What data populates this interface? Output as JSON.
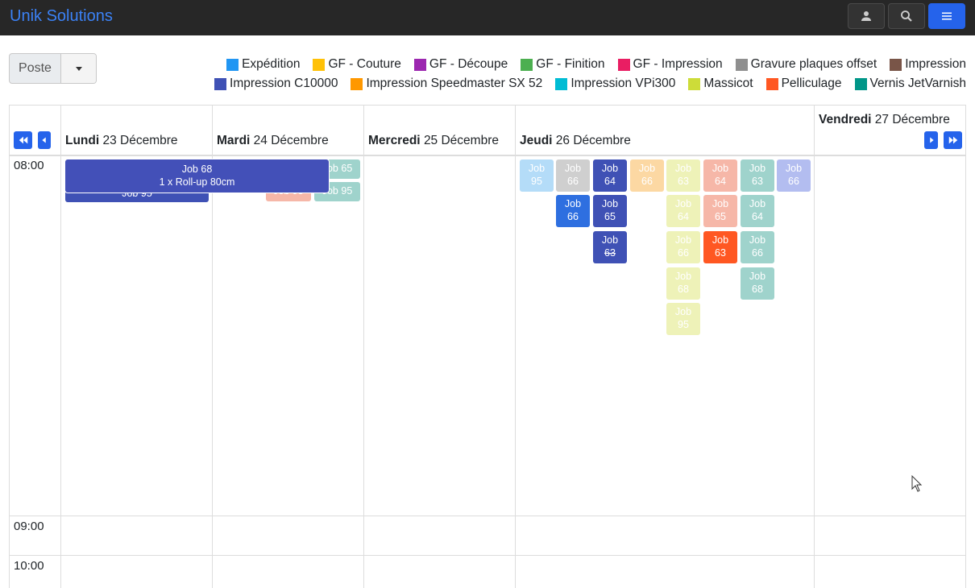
{
  "app": {
    "brand": "Unik Solutions"
  },
  "toolbar": {
    "poste_label": "Poste"
  },
  "legend": [
    {
      "label": "Expédition",
      "color": "#2196f3"
    },
    {
      "label": "GF - Couture",
      "color": "#ffc107"
    },
    {
      "label": "GF - Découpe",
      "color": "#9c27b0"
    },
    {
      "label": "GF - Finition",
      "color": "#4caf50"
    },
    {
      "label": "GF - Impression",
      "color": "#e91e63"
    },
    {
      "label": "Gravure plaques offset",
      "color": "#8f8f8f"
    },
    {
      "label": "Impression",
      "color": "#795548"
    },
    {
      "label": "Impression C10000",
      "color": "#3f51b5"
    },
    {
      "label": "Impression Speedmaster SX 52",
      "color": "#ff9800"
    },
    {
      "label": "Impression VPi300",
      "color": "#00bcd4"
    },
    {
      "label": "Massicot",
      "color": "#cddc39"
    },
    {
      "label": "Pelliculage",
      "color": "#ff5722"
    },
    {
      "label": "Vernis JetVarnish",
      "color": "#009688"
    }
  ],
  "calendar": {
    "days": [
      {
        "name": "Lundi",
        "date": "23 Décembre"
      },
      {
        "name": "Mardi",
        "date": "24 Décembre"
      },
      {
        "name": "Mercredi",
        "date": "25 Décembre"
      },
      {
        "name": "Jeudi",
        "date": "26 Décembre"
      },
      {
        "name": "Vendredi",
        "date": "27 Décembre"
      }
    ],
    "times": [
      "08:00",
      "09:00",
      "10:00"
    ],
    "monday_events": {
      "back_label": "Job 95",
      "front_title": "Job 68",
      "front_detail": "1 x Roll-up 80cm"
    },
    "tuesday_events": [
      "Job 65",
      "Job 95",
      "Job 95"
    ],
    "thursday_events": [
      [
        "Job",
        "95"
      ],
      [
        "Job",
        "66"
      ],
      [
        "Job",
        "64"
      ],
      [
        "Job",
        "66"
      ],
      [
        "Job",
        "63"
      ],
      [
        "Job",
        "64"
      ],
      [
        "Job",
        "63"
      ],
      [
        "Job",
        "66"
      ],
      [
        "Job",
        "66"
      ],
      [
        "Job",
        "65"
      ],
      [
        "Job",
        "64"
      ],
      [
        "Job",
        "65"
      ],
      [
        "Job",
        "64"
      ],
      [
        "Job",
        "63"
      ],
      [
        "Job",
        "66"
      ],
      [
        "Job",
        "63"
      ],
      [
        "Job",
        "66"
      ],
      [
        "Job",
        "68"
      ],
      [
        "Job",
        "68"
      ],
      [
        "Job",
        "95"
      ]
    ]
  }
}
